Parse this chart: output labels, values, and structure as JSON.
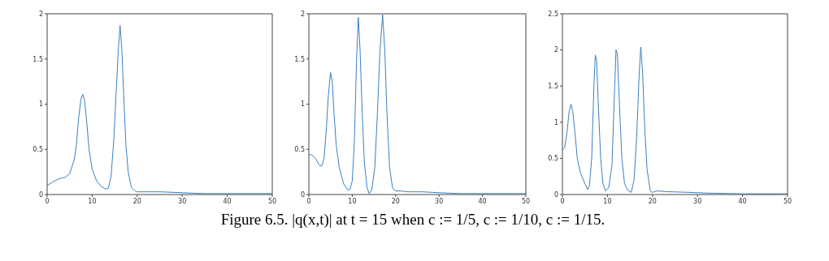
{
  "chart_data": [
    {
      "type": "line",
      "xlim": [
        0,
        50
      ],
      "xticks": [
        0,
        10,
        20,
        30,
        40,
        50
      ],
      "ylim": [
        0,
        2
      ],
      "yticks": [
        0,
        0.5,
        1,
        1.5,
        2
      ],
      "annotations": [
        "Figure 6.5. |q(x,t)| at t = 15 when c := 1/5, c := 1/10, c := 1/15."
      ],
      "series": [
        {
          "color": "#3a7fc1",
          "x": [
            0,
            1,
            2,
            3,
            4,
            5,
            6,
            6.5,
            7,
            7.5,
            7.9,
            8.3,
            8.8,
            9.3,
            10,
            11,
            12,
            13,
            13.6,
            14.2,
            14.8,
            15.3,
            15.8,
            16.2,
            16.6,
            17,
            17.5,
            18,
            18.7,
            19.5,
            20,
            25,
            30,
            35,
            40,
            50
          ],
          "values": [
            0.1,
            0.13,
            0.16,
            0.18,
            0.19,
            0.23,
            0.38,
            0.55,
            0.85,
            1.05,
            1.11,
            1.05,
            0.8,
            0.5,
            0.28,
            0.15,
            0.09,
            0.06,
            0.07,
            0.2,
            0.6,
            1.1,
            1.6,
            1.87,
            1.6,
            1.1,
            0.55,
            0.25,
            0.08,
            0.04,
            0.03,
            0.03,
            0.02,
            0.01,
            0.01,
            0.01
          ]
        }
      ]
    },
    {
      "type": "line",
      "xlim": [
        0,
        50
      ],
      "xticks": [
        0,
        10,
        20,
        30,
        40,
        50
      ],
      "ylim": [
        0,
        2
      ],
      "yticks": [
        0,
        0.5,
        1,
        1.5,
        2
      ],
      "series": [
        {
          "color": "#3a7fc1",
          "x": [
            0,
            0.7,
            1.5,
            2.5,
            3,
            3.5,
            4,
            4.5,
            5,
            5.4,
            5.8,
            6.3,
            7,
            8,
            9,
            9.5,
            10,
            10.5,
            11,
            11.4,
            11.8,
            12.3,
            12.8,
            13.4,
            13.9,
            14.5,
            15.2,
            15.8,
            16.4,
            17,
            17.5,
            18,
            18.6,
            19.3,
            20,
            21,
            23,
            26,
            30,
            35,
            40,
            50
          ],
          "values": [
            0.44,
            0.44,
            0.4,
            0.32,
            0.32,
            0.4,
            0.7,
            1.1,
            1.35,
            1.25,
            0.9,
            0.55,
            0.3,
            0.12,
            0.05,
            0.06,
            0.15,
            0.6,
            1.5,
            1.96,
            1.6,
            0.9,
            0.35,
            0.08,
            0.01,
            0.05,
            0.3,
            0.9,
            1.6,
            1.99,
            1.6,
            0.9,
            0.3,
            0.07,
            0.04,
            0.04,
            0.03,
            0.03,
            0.02,
            0.01,
            0.01,
            0.01
          ]
        }
      ]
    },
    {
      "type": "line",
      "xlim": [
        0,
        50
      ],
      "xticks": [
        0,
        10,
        20,
        30,
        40,
        50
      ],
      "ylim": [
        0,
        2.5
      ],
      "yticks": [
        0,
        0.5,
        1,
        1.5,
        2,
        2.5
      ],
      "series": [
        {
          "color": "#3a7fc1",
          "x": [
            0,
            0.5,
            1,
            1.5,
            1.9,
            2.3,
            2.8,
            3.3,
            4,
            5,
            5.6,
            6,
            6.5,
            7,
            7.3,
            7.6,
            8,
            8.5,
            9,
            9.6,
            10.3,
            11,
            11.5,
            11.9,
            12.2,
            12.7,
            13.2,
            13.8,
            14.5,
            15.3,
            15.9,
            16.5,
            17,
            17.4,
            17.8,
            18.3,
            18.8,
            19.5,
            20,
            21,
            23,
            28,
            32,
            40,
            50
          ],
          "values": [
            0.62,
            0.65,
            0.85,
            1.15,
            1.25,
            1.15,
            0.85,
            0.5,
            0.3,
            0.15,
            0.07,
            0.12,
            0.5,
            1.5,
            1.93,
            1.85,
            1.2,
            0.5,
            0.15,
            0.05,
            0.1,
            0.4,
            1.3,
            2,
            1.95,
            1.2,
            0.5,
            0.15,
            0.06,
            0.03,
            0.2,
            0.8,
            1.6,
            2.04,
            1.7,
            0.9,
            0.35,
            0.05,
            0.03,
            0.05,
            0.04,
            0.03,
            0.02,
            0.01,
            0.01
          ]
        }
      ]
    }
  ]
}
